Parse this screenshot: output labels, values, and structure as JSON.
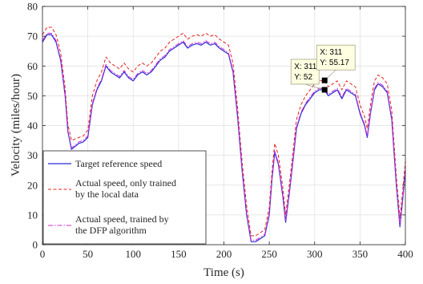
{
  "chart_data": {
    "type": "line",
    "xlabel": "Time (s)",
    "ylabel": "Velocity (miles/hour)",
    "xlim": [
      0,
      400
    ],
    "ylim": [
      0,
      80
    ],
    "xticks": [
      0,
      50,
      100,
      150,
      200,
      250,
      300,
      350,
      400
    ],
    "yticks": [
      0,
      10,
      20,
      30,
      40,
      50,
      60,
      70,
      80
    ],
    "grid": true,
    "legend_position": "bottom-left",
    "x": [
      0,
      5,
      10,
      15,
      20,
      25,
      28,
      32,
      36,
      40,
      45,
      50,
      55,
      60,
      65,
      70,
      75,
      80,
      85,
      90,
      95,
      100,
      105,
      110,
      115,
      120,
      125,
      130,
      135,
      140,
      145,
      150,
      155,
      160,
      165,
      170,
      175,
      180,
      185,
      190,
      195,
      200,
      205,
      210,
      215,
      220,
      225,
      230,
      235,
      240,
      245,
      250,
      253,
      256,
      260,
      265,
      268,
      272,
      275,
      280,
      285,
      290,
      295,
      300,
      305,
      311,
      315,
      320,
      325,
      330,
      335,
      340,
      345,
      350,
      355,
      358,
      362,
      366,
      370,
      375,
      380,
      385,
      390,
      394,
      397,
      400
    ],
    "series": [
      {
        "name": "Target reference speed",
        "color": "#2b2bd6",
        "dash": "solid",
        "values": [
          68,
          70.5,
          70.5,
          68,
          62,
          50,
          38,
          32,
          33,
          34,
          34.5,
          36,
          47,
          52,
          55,
          60,
          58,
          57,
          56,
          58,
          56,
          55,
          57,
          58,
          57,
          58,
          60,
          62,
          63,
          65,
          66,
          67,
          68,
          66,
          67,
          67.5,
          67,
          68,
          67,
          67.5,
          66,
          65,
          64,
          58,
          43,
          25,
          10,
          1,
          1,
          2,
          3,
          10,
          22,
          31,
          27,
          16,
          7.5,
          17,
          25,
          39,
          44,
          47,
          49,
          51,
          52,
          52,
          50,
          51,
          52,
          49,
          52,
          51,
          50,
          44,
          40,
          36,
          45,
          52,
          54,
          53,
          51,
          42,
          20,
          6,
          15,
          25
        ]
      },
      {
        "name": "Actual speed, only trained by the local data",
        "color": "#e32222",
        "dash": "dashed",
        "values": [
          70.5,
          73,
          73,
          70.5,
          64.5,
          52.5,
          40.5,
          35,
          35.5,
          36,
          36.5,
          38.5,
          50,
          55,
          58,
          63,
          61,
          60,
          59,
          61,
          59,
          58,
          60,
          61,
          60,
          61,
          63,
          65,
          66,
          68,
          69,
          70,
          71,
          69,
          70,
          70.5,
          70,
          71,
          70,
          70.5,
          69,
          68,
          67,
          61,
          46,
          28,
          13,
          3,
          3,
          4,
          5,
          12.5,
          24.5,
          34,
          30,
          19,
          10,
          20,
          28,
          42,
          47,
          50,
          52,
          54,
          55,
          55.17,
          53,
          54,
          55,
          52,
          55,
          54,
          53,
          47,
          43,
          39,
          48,
          55,
          57,
          56,
          54,
          45,
          23,
          9,
          18,
          28
        ]
      },
      {
        "name": "Actual speed, trained by the DFP algorithm",
        "color": "#d12bd1",
        "dash": "dashdot",
        "values": [
          68.5,
          71,
          71,
          68.5,
          62.5,
          50.5,
          38.5,
          32.5,
          33.5,
          34.5,
          35,
          36.5,
          47.5,
          52.5,
          55.5,
          60.5,
          58.5,
          57.5,
          56.5,
          58.5,
          56.5,
          55.5,
          57.5,
          58.5,
          57.5,
          58.5,
          60.5,
          62.5,
          63.5,
          65.5,
          66.5,
          67.5,
          68.5,
          66.5,
          67.5,
          68,
          67.5,
          68.5,
          67.5,
          68,
          66.5,
          65.5,
          64.5,
          58.5,
          43.5,
          25.5,
          10.5,
          1.5,
          1.5,
          2.5,
          3.5,
          10.5,
          22.5,
          31.5,
          27.5,
          16.5,
          8,
          17.5,
          25.5,
          39.5,
          44.5,
          47.5,
          49.5,
          51.5,
          52.5,
          52.5,
          50.5,
          51.5,
          52.5,
          49.5,
          52.5,
          51.5,
          50.5,
          44.5,
          40.5,
          36.5,
          45.5,
          52.5,
          54.5,
          53.5,
          51.5,
          42.5,
          20.5,
          6.5,
          15.5,
          25.5
        ]
      }
    ],
    "annotations": [
      {
        "x": 311,
        "y": 52,
        "line1": "X: 311",
        "line2": "Y: 52"
      },
      {
        "x": 311,
        "y": 55.17,
        "line1": "X: 311",
        "line2": "Y: 55.17"
      }
    ]
  }
}
